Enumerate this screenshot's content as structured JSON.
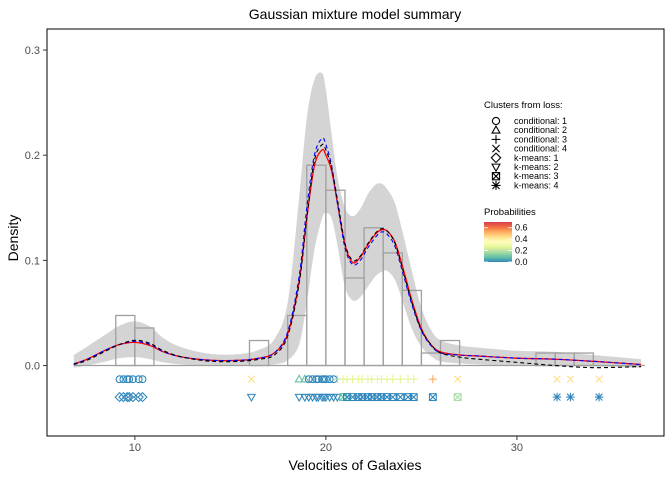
{
  "chart_data": {
    "type": "line",
    "title": "Gaussian mixture model summary",
    "xlabel": "Velocities of Galaxies",
    "ylabel": "Density",
    "xlim": [
      5.4,
      37.7
    ],
    "ylim": [
      -0.067,
      0.32
    ],
    "x_ticks": [
      10,
      20,
      30
    ],
    "x_tick_labels": [
      "10",
      "20",
      "30"
    ],
    "y_ticks": [
      0.0,
      0.1,
      0.2,
      0.3
    ],
    "y_tick_labels": [
      "0.0",
      "0.1",
      "0.2",
      "0.3"
    ],
    "grid": false,
    "histogram": {
      "bin_width": 1,
      "bins": [
        {
          "x0": 9,
          "x1": 10,
          "density": 0.0476
        },
        {
          "x0": 10,
          "x1": 11,
          "density": 0.0357
        },
        {
          "x0": 16,
          "x1": 17,
          "density": 0.0238
        },
        {
          "x0": 18,
          "x1": 19,
          "density": 0.0476
        },
        {
          "x0": 19,
          "x1": 20,
          "density": 0.1905
        },
        {
          "x0": 20,
          "x1": 21,
          "density": 0.1667
        },
        {
          "x0": 21,
          "x1": 22,
          "density": 0.0833
        },
        {
          "x0": 22,
          "x1": 23,
          "density": 0.131
        },
        {
          "x0": 23,
          "x1": 24,
          "density": 0.1071
        },
        {
          "x0": 24,
          "x1": 25,
          "density": 0.0714
        },
        {
          "x0": 25,
          "x1": 26,
          "density": 0.0119
        },
        {
          "x0": 26,
          "x1": 27,
          "density": 0.0238
        },
        {
          "x0": 31,
          "x1": 32,
          "density": 0.0119
        },
        {
          "x0": 32,
          "x1": 33,
          "density": 0.0119
        },
        {
          "x0": 33,
          "x1": 34,
          "density": 0.0119
        },
        {
          "x0": 34,
          "x1": 35,
          "density": 0.0
        }
      ]
    },
    "series": [
      {
        "style": "solid",
        "color": "#ff0000",
        "x": [
          6.8,
          7.5,
          8.5,
          9.2,
          10.0,
          10.8,
          11.5,
          12.5,
          14.0,
          15.5,
          16.5,
          17.3,
          18.0,
          18.6,
          19.0,
          19.4,
          19.8,
          20.0,
          20.3,
          20.6,
          21.0,
          21.4,
          21.8,
          22.2,
          22.6,
          22.9,
          23.2,
          23.6,
          24.0,
          24.5,
          25.0,
          25.5,
          26.0,
          27.0,
          28.0,
          30.0,
          32.0,
          34.0,
          36.5
        ],
        "y": [
          0.0015,
          0.006,
          0.015,
          0.02,
          0.022,
          0.019,
          0.013,
          0.008,
          0.005,
          0.005,
          0.007,
          0.012,
          0.03,
          0.08,
          0.14,
          0.19,
          0.205,
          0.2,
          0.185,
          0.155,
          0.115,
          0.098,
          0.103,
          0.115,
          0.125,
          0.129,
          0.128,
          0.118,
          0.095,
          0.062,
          0.035,
          0.02,
          0.013,
          0.01,
          0.009,
          0.007,
          0.006,
          0.004,
          0.001
        ]
      },
      {
        "style": "dashed",
        "color": "#0000ff",
        "x": [
          6.8,
          7.5,
          8.5,
          9.2,
          10.0,
          10.8,
          11.5,
          12.5,
          14.0,
          15.5,
          16.5,
          17.3,
          18.0,
          18.6,
          19.0,
          19.4,
          19.8,
          20.0,
          20.3,
          20.6,
          21.0,
          21.4,
          21.8,
          22.2,
          22.6,
          22.9,
          23.2,
          23.6,
          24.0,
          24.5,
          25.0,
          25.5,
          26.0,
          27.0,
          28.0,
          30.0,
          32.0,
          34.0,
          36.5
        ],
        "y": [
          0.0015,
          0.006,
          0.015,
          0.02,
          0.023,
          0.02,
          0.013,
          0.008,
          0.005,
          0.005,
          0.007,
          0.012,
          0.032,
          0.085,
          0.15,
          0.2,
          0.216,
          0.21,
          0.19,
          0.155,
          0.112,
          0.096,
          0.1,
          0.112,
          0.122,
          0.127,
          0.125,
          0.114,
          0.09,
          0.058,
          0.033,
          0.019,
          0.012,
          0.01,
          0.009,
          0.007,
          0.006,
          0.004,
          0.001
        ]
      },
      {
        "style": "dashed",
        "color": "#000000",
        "x": [
          6.8,
          7.5,
          8.5,
          9.2,
          10.0,
          10.8,
          11.5,
          12.5,
          14.0,
          15.5,
          16.5,
          17.3,
          18.0,
          18.6,
          19.0,
          19.4,
          19.8,
          20.0,
          20.3,
          20.6,
          21.0,
          21.4,
          21.8,
          22.2,
          22.6,
          22.9,
          23.2,
          23.6,
          24.0,
          24.5,
          25.0,
          25.5,
          26.0,
          27.0,
          28.0,
          30.0,
          32.0,
          34.0,
          36.5
        ],
        "y": [
          0.001,
          0.005,
          0.014,
          0.02,
          0.024,
          0.021,
          0.014,
          0.008,
          0.004,
          0.004,
          0.006,
          0.01,
          0.028,
          0.078,
          0.14,
          0.195,
          0.21,
          0.205,
          0.188,
          0.158,
          0.116,
          0.1,
          0.104,
          0.116,
          0.126,
          0.13,
          0.128,
          0.117,
          0.093,
          0.06,
          0.034,
          0.02,
          0.012,
          0.008,
          0.006,
          0.003,
          0.0,
          -0.002,
          -0.001
        ]
      }
    ],
    "ribbon": {
      "x": [
        6.8,
        7.5,
        8.5,
        9.2,
        10.0,
        10.8,
        11.5,
        12.5,
        14.0,
        15.5,
        16.5,
        17.3,
        18.0,
        18.6,
        19.0,
        19.4,
        19.8,
        20.0,
        20.3,
        20.6,
        21.0,
        21.4,
        21.8,
        22.2,
        22.6,
        22.9,
        23.2,
        23.6,
        24.0,
        24.5,
        25.0,
        25.5,
        26.0,
        27.0,
        28.0,
        30.0,
        32.0,
        34.0,
        36.5
      ],
      "upper": [
        0.01,
        0.018,
        0.03,
        0.038,
        0.042,
        0.037,
        0.026,
        0.017,
        0.011,
        0.011,
        0.015,
        0.025,
        0.06,
        0.16,
        0.235,
        0.272,
        0.278,
        0.262,
        0.22,
        0.18,
        0.15,
        0.142,
        0.149,
        0.163,
        0.172,
        0.173,
        0.168,
        0.155,
        0.128,
        0.09,
        0.055,
        0.034,
        0.024,
        0.019,
        0.017,
        0.014,
        0.013,
        0.01,
        0.006
      ],
      "lower": [
        -0.002,
        0.0,
        0.004,
        0.007,
        0.008,
        0.006,
        0.003,
        0.001,
        0.0,
        0.0,
        0.0,
        0.001,
        0.005,
        0.02,
        0.06,
        0.11,
        0.14,
        0.145,
        0.14,
        0.115,
        0.075,
        0.062,
        0.065,
        0.075,
        0.085,
        0.089,
        0.09,
        0.082,
        0.062,
        0.035,
        0.018,
        0.009,
        0.004,
        0.002,
        0.001,
        0.0,
        0.0,
        -0.001,
        -0.002
      ]
    },
    "rug_rows": [
      {
        "row": "conditional",
        "y": -0.013,
        "points": [
          {
            "x": 9.2,
            "shape": "circle",
            "color": "#3288bd"
          },
          {
            "x": 9.4,
            "shape": "circle",
            "color": "#3288bd"
          },
          {
            "x": 9.6,
            "shape": "circle",
            "color": "#3288bd"
          },
          {
            "x": 9.7,
            "shape": "circle",
            "color": "#3288bd"
          },
          {
            "x": 9.9,
            "shape": "circle",
            "color": "#3288bd"
          },
          {
            "x": 10.2,
            "shape": "circle",
            "color": "#3288bd"
          },
          {
            "x": 10.4,
            "shape": "circle",
            "color": "#3288bd"
          },
          {
            "x": 16.1,
            "shape": "cross",
            "color": "#fee08b"
          },
          {
            "x": 18.6,
            "shape": "triangle",
            "color": "#66c2a5"
          },
          {
            "x": 18.9,
            "shape": "triangle",
            "color": "#66c2a5"
          },
          {
            "x": 19.1,
            "shape": "circle",
            "color": "#3288bd"
          },
          {
            "x": 19.3,
            "shape": "circle",
            "color": "#3288bd"
          },
          {
            "x": 19.5,
            "shape": "circle",
            "color": "#3288bd"
          },
          {
            "x": 19.6,
            "shape": "circle",
            "color": "#3288bd"
          },
          {
            "x": 19.8,
            "shape": "circle",
            "color": "#3288bd"
          },
          {
            "x": 19.9,
            "shape": "circle",
            "color": "#3288bd"
          },
          {
            "x": 20.0,
            "shape": "circle",
            "color": "#3288bd"
          },
          {
            "x": 20.2,
            "shape": "circle",
            "color": "#3288bd"
          },
          {
            "x": 20.4,
            "shape": "circle",
            "color": "#3288bd"
          },
          {
            "x": 20.6,
            "shape": "plus",
            "color": "#abdda4"
          },
          {
            "x": 20.9,
            "shape": "plus",
            "color": "#e6f598"
          },
          {
            "x": 21.1,
            "shape": "plus",
            "color": "#e6f598"
          },
          {
            "x": 21.4,
            "shape": "plus",
            "color": "#e6f598"
          },
          {
            "x": 21.7,
            "shape": "plus",
            "color": "#e6f598"
          },
          {
            "x": 21.9,
            "shape": "plus",
            "color": "#e6f598"
          },
          {
            "x": 22.2,
            "shape": "plus",
            "color": "#e6f598"
          },
          {
            "x": 22.4,
            "shape": "plus",
            "color": "#e6f598"
          },
          {
            "x": 22.7,
            "shape": "plus",
            "color": "#e6f598"
          },
          {
            "x": 22.9,
            "shape": "plus",
            "color": "#e6f598"
          },
          {
            "x": 23.2,
            "shape": "plus",
            "color": "#e6f598"
          },
          {
            "x": 23.5,
            "shape": "plus",
            "color": "#e6f598"
          },
          {
            "x": 23.9,
            "shape": "plus",
            "color": "#e6f598"
          },
          {
            "x": 24.3,
            "shape": "plus",
            "color": "#e6f598"
          },
          {
            "x": 24.6,
            "shape": "plus",
            "color": "#e6f598"
          },
          {
            "x": 25.6,
            "shape": "plus",
            "color": "#fdae61"
          },
          {
            "x": 26.9,
            "shape": "cross",
            "color": "#fee08b"
          },
          {
            "x": 32.1,
            "shape": "cross",
            "color": "#fee08b"
          },
          {
            "x": 32.8,
            "shape": "cross",
            "color": "#fee08b"
          },
          {
            "x": 34.3,
            "shape": "cross",
            "color": "#fee08b"
          }
        ]
      },
      {
        "row": "k-means",
        "y": -0.03,
        "points": [
          {
            "x": 9.2,
            "shape": "diamond",
            "color": "#3288bd"
          },
          {
            "x": 9.4,
            "shape": "diamond",
            "color": "#3288bd"
          },
          {
            "x": 9.6,
            "shape": "diamond",
            "color": "#3288bd"
          },
          {
            "x": 9.7,
            "shape": "diamond",
            "color": "#3288bd"
          },
          {
            "x": 9.9,
            "shape": "diamond",
            "color": "#3288bd"
          },
          {
            "x": 10.2,
            "shape": "diamond",
            "color": "#3288bd"
          },
          {
            "x": 10.4,
            "shape": "diamond",
            "color": "#3288bd"
          },
          {
            "x": 16.1,
            "shape": "triangle-down",
            "color": "#3288bd"
          },
          {
            "x": 18.6,
            "shape": "triangle-down",
            "color": "#3288bd"
          },
          {
            "x": 18.9,
            "shape": "triangle-down",
            "color": "#3288bd"
          },
          {
            "x": 19.1,
            "shape": "triangle-down",
            "color": "#3288bd"
          },
          {
            "x": 19.3,
            "shape": "triangle-down",
            "color": "#3288bd"
          },
          {
            "x": 19.5,
            "shape": "triangle-down",
            "color": "#3288bd"
          },
          {
            "x": 19.6,
            "shape": "triangle-down",
            "color": "#3288bd"
          },
          {
            "x": 19.8,
            "shape": "triangle-down",
            "color": "#3288bd"
          },
          {
            "x": 19.9,
            "shape": "triangle-down",
            "color": "#3288bd"
          },
          {
            "x": 20.0,
            "shape": "triangle-down",
            "color": "#3288bd"
          },
          {
            "x": 20.2,
            "shape": "triangle-down",
            "color": "#3288bd"
          },
          {
            "x": 20.4,
            "shape": "triangle-down",
            "color": "#3288bd"
          },
          {
            "x": 20.6,
            "shape": "triangle-down",
            "color": "#3288bd"
          },
          {
            "x": 20.9,
            "shape": "boxx",
            "color": "#66c2a5"
          },
          {
            "x": 21.1,
            "shape": "boxx",
            "color": "#3288bd"
          },
          {
            "x": 21.4,
            "shape": "boxx",
            "color": "#3288bd"
          },
          {
            "x": 21.7,
            "shape": "boxx",
            "color": "#3288bd"
          },
          {
            "x": 21.9,
            "shape": "boxx",
            "color": "#3288bd"
          },
          {
            "x": 22.2,
            "shape": "boxx",
            "color": "#3288bd"
          },
          {
            "x": 22.4,
            "shape": "boxx",
            "color": "#3288bd"
          },
          {
            "x": 22.7,
            "shape": "boxx",
            "color": "#3288bd"
          },
          {
            "x": 22.9,
            "shape": "boxx",
            "color": "#3288bd"
          },
          {
            "x": 23.2,
            "shape": "boxx",
            "color": "#3288bd"
          },
          {
            "x": 23.5,
            "shape": "boxx",
            "color": "#3288bd"
          },
          {
            "x": 23.9,
            "shape": "boxx",
            "color": "#3288bd"
          },
          {
            "x": 24.3,
            "shape": "boxx",
            "color": "#3288bd"
          },
          {
            "x": 24.6,
            "shape": "boxx",
            "color": "#3288bd"
          },
          {
            "x": 25.6,
            "shape": "boxx",
            "color": "#3288bd"
          },
          {
            "x": 26.9,
            "shape": "boxx",
            "color": "#abdda4"
          },
          {
            "x": 32.1,
            "shape": "asterisk",
            "color": "#3288bd"
          },
          {
            "x": 32.8,
            "shape": "asterisk",
            "color": "#3288bd"
          },
          {
            "x": 34.3,
            "shape": "asterisk",
            "color": "#3288bd"
          }
        ]
      }
    ],
    "legend": {
      "placement": "right",
      "shape_title": "Clusters from loss:",
      "shape_entries": [
        {
          "label": "conditional: 1",
          "shape": "circle"
        },
        {
          "label": "conditional: 2",
          "shape": "triangle"
        },
        {
          "label": "conditional: 3",
          "shape": "plus"
        },
        {
          "label": "conditional: 4",
          "shape": "cross"
        },
        {
          "label": "k-means: 1",
          "shape": "diamond"
        },
        {
          "label": "k-means: 2",
          "shape": "triangle-down"
        },
        {
          "label": "k-means: 3",
          "shape": "boxx"
        },
        {
          "label": "k-means: 4",
          "shape": "asterisk"
        }
      ],
      "color_title": "Probabilities",
      "color_ticks": [
        "0.6",
        "0.4",
        "0.2",
        "0.0"
      ],
      "color_range": [
        0.0,
        0.7
      ],
      "color_stops": [
        "#3288bd",
        "#66c2a5",
        "#abdda4",
        "#e6f598",
        "#ffffbf",
        "#fee08b",
        "#fdae61",
        "#f46d43",
        "#d53e4f"
      ]
    }
  }
}
